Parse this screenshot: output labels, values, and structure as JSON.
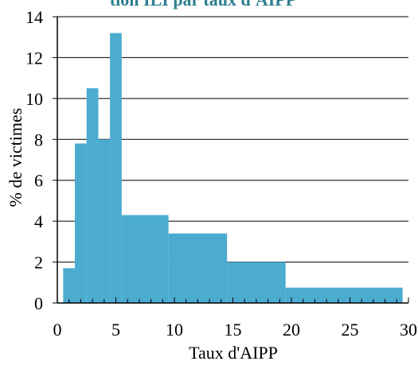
{
  "chart_data": {
    "type": "bar",
    "title": "tion ILI par taux d'AIPP",
    "xlabel": "Taux d'AIPP",
    "ylabel": "% de victimes",
    "xlim": [
      0,
      30
    ],
    "ylim": [
      0,
      14
    ],
    "x_ticks": [
      "0",
      "5",
      "10",
      "15",
      "20",
      "25",
      "30"
    ],
    "y_ticks": [
      "0",
      "2",
      "4",
      "6",
      "8",
      "10",
      "12",
      "14"
    ],
    "grid": "horizontal",
    "legend": "none",
    "bins": [
      {
        "x0": 0.5,
        "x1": 1.5,
        "value": 1.7
      },
      {
        "x0": 1.5,
        "x1": 2.5,
        "value": 7.8
      },
      {
        "x0": 2.5,
        "x1": 3.5,
        "value": 10.5
      },
      {
        "x0": 3.5,
        "x1": 4.5,
        "value": 8.0
      },
      {
        "x0": 4.5,
        "x1": 5.5,
        "value": 13.2
      },
      {
        "x0": 5.5,
        "x1": 9.5,
        "value": 4.3
      },
      {
        "x0": 9.5,
        "x1": 14.5,
        "value": 3.4
      },
      {
        "x0": 14.5,
        "x1": 19.5,
        "value": 2.0
      },
      {
        "x0": 19.5,
        "x1": 29.5,
        "value": 0.75
      }
    ]
  },
  "colors": {
    "bar": "#4bacd0",
    "title": "#2f7f8f",
    "axis": "#000000"
  }
}
